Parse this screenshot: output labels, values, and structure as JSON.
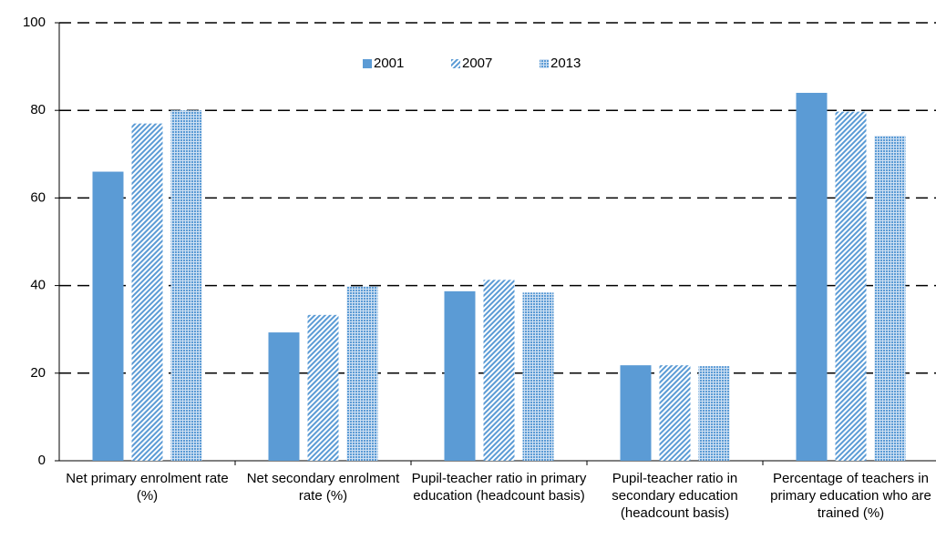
{
  "chart_data": {
    "type": "bar",
    "categories": [
      "Net primary enrolment rate (%)",
      "Net secondary enrolment rate (%)",
      "Pupil-teacher ratio in primary education (headcount basis)",
      "Pupil-teacher ratio in secondary education (headcount basis)",
      "Percentage of teachers in primary education who are trained (%)"
    ],
    "series": [
      {
        "name": "2001",
        "color": "#5b9bd5",
        "pattern": "solid",
        "values": [
          66,
          29.3,
          38.7,
          21.8,
          84
        ]
      },
      {
        "name": "2007",
        "color": "#5b9bd5",
        "pattern": "hatch",
        "values": [
          77,
          33.3,
          41.3,
          21.8,
          79.7
        ]
      },
      {
        "name": "2013",
        "color": "#5b9bd5",
        "pattern": "dots",
        "values": [
          80,
          39.8,
          38.4,
          21.6,
          74.2
        ]
      }
    ],
    "ylim": [
      0,
      100
    ],
    "yticks": [
      0,
      20,
      40,
      60,
      80,
      100
    ],
    "grid": true,
    "legend": "upper center"
  }
}
